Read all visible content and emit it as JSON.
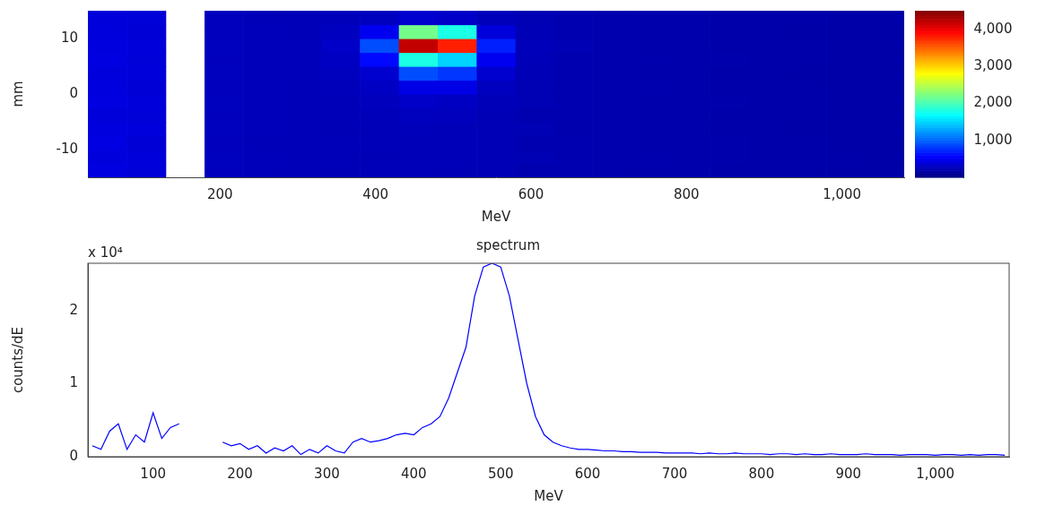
{
  "chart_data": [
    {
      "type": "heatmap",
      "xlabel": "MeV",
      "ylabel": "mm",
      "xlim": [
        30,
        1080
      ],
      "xticks": [
        200,
        400,
        600,
        800,
        1000
      ],
      "ylim": [
        -15,
        15
      ],
      "yticks": [
        -10,
        0,
        10
      ],
      "grid": false,
      "x_edges": [
        30,
        80,
        130,
        180,
        230,
        280,
        330,
        380,
        430,
        480,
        530,
        580,
        630,
        680,
        730,
        780,
        830,
        880,
        930,
        980,
        1030,
        1080
      ],
      "y_edges": [
        -15,
        -12.5,
        -10,
        -7.5,
        -5,
        -2.5,
        0,
        2.5,
        5,
        7.5,
        10,
        12.5,
        15
      ],
      "z": [
        [
          430,
          390,
          null,
          270,
          260,
          250,
          240,
          250,
          250,
          240,
          240,
          220,
          220,
          210,
          200,
          200,
          190,
          190,
          190,
          180,
          180
        ],
        [
          410,
          400,
          null,
          280,
          260,
          250,
          250,
          240,
          250,
          250,
          240,
          230,
          220,
          210,
          210,
          200,
          200,
          190,
          190,
          190,
          180
        ],
        [
          440,
          380,
          null,
          270,
          250,
          250,
          250,
          250,
          250,
          250,
          240,
          220,
          220,
          210,
          200,
          200,
          200,
          190,
          190,
          180,
          180
        ],
        [
          420,
          410,
          null,
          280,
          260,
          250,
          240,
          250,
          260,
          250,
          240,
          230,
          210,
          210,
          200,
          200,
          190,
          190,
          180,
          180,
          180
        ],
        [
          400,
          390,
          null,
          270,
          260,
          250,
          250,
          260,
          280,
          270,
          240,
          220,
          220,
          210,
          200,
          200,
          190,
          190,
          190,
          180,
          180
        ],
        [
          430,
          400,
          null,
          280,
          260,
          250,
          250,
          270,
          320,
          300,
          250,
          230,
          220,
          210,
          200,
          200,
          200,
          190,
          190,
          180,
          180
        ],
        [
          420,
          380,
          null,
          270,
          260,
          250,
          260,
          300,
          450,
          450,
          280,
          230,
          220,
          210,
          210,
          200,
          190,
          190,
          190,
          180,
          180
        ],
        [
          410,
          400,
          null,
          280,
          260,
          260,
          280,
          350,
          900,
          800,
          350,
          240,
          220,
          210,
          200,
          200,
          190,
          190,
          180,
          180,
          180
        ],
        [
          430,
          390,
          null,
          270,
          260,
          260,
          300,
          600,
          1800,
          1500,
          500,
          250,
          220,
          210,
          210,
          200,
          200,
          190,
          190,
          180,
          180
        ],
        [
          420,
          400,
          null,
          280,
          260,
          260,
          320,
          900,
          4200,
          3800,
          700,
          260,
          230,
          210,
          200,
          200,
          190,
          190,
          190,
          180,
          180
        ],
        [
          410,
          380,
          null,
          270,
          260,
          250,
          290,
          500,
          2200,
          1800,
          400,
          240,
          220,
          210,
          200,
          200,
          190,
          190,
          180,
          180,
          180
        ],
        [
          400,
          390,
          null,
          270,
          250,
          250,
          260,
          280,
          350,
          320,
          260,
          230,
          220,
          210,
          200,
          200,
          190,
          190,
          190,
          180,
          180
        ]
      ],
      "colorbar_range": [
        0,
        4500
      ],
      "colorbar_ticks": [
        1000,
        2000,
        3000,
        4000
      ]
    },
    {
      "type": "line",
      "title": "spectrum",
      "xlabel": "MeV",
      "ylabel": "counts/dE",
      "annotation": "x 10⁴",
      "color": "#0000ff",
      "grid": false,
      "xlim": [
        25,
        1085
      ],
      "xticks": [
        100,
        200,
        300,
        400,
        500,
        600,
        700,
        800,
        900,
        1000
      ],
      "ylim": [
        0,
        2.65
      ],
      "yticks": [
        0,
        1,
        2
      ],
      "x": [
        30,
        40,
        50,
        60,
        70,
        80,
        90,
        100,
        110,
        120,
        130,
        140,
        150,
        160,
        170,
        180,
        190,
        200,
        210,
        220,
        230,
        240,
        250,
        260,
        270,
        280,
        290,
        300,
        310,
        320,
        330,
        340,
        350,
        360,
        370,
        380,
        390,
        400,
        410,
        420,
        430,
        440,
        450,
        460,
        470,
        480,
        490,
        500,
        510,
        520,
        530,
        540,
        550,
        560,
        570,
        580,
        590,
        600,
        610,
        620,
        630,
        640,
        650,
        660,
        670,
        680,
        690,
        700,
        710,
        720,
        730,
        740,
        750,
        760,
        770,
        780,
        790,
        800,
        810,
        820,
        830,
        840,
        850,
        860,
        870,
        880,
        890,
        900,
        910,
        920,
        930,
        940,
        950,
        960,
        970,
        980,
        990,
        1000,
        1010,
        1020,
        1030,
        1040,
        1050,
        1060,
        1070,
        1080
      ],
      "values": [
        0.15,
        0.1,
        0.35,
        0.45,
        0.1,
        0.3,
        0.2,
        0.6,
        0.25,
        0.4,
        0.45,
        null,
        null,
        null,
        null,
        0.2,
        0.15,
        0.18,
        0.1,
        0.15,
        0.05,
        0.12,
        0.08,
        0.15,
        0.03,
        0.1,
        0.05,
        0.15,
        0.08,
        0.05,
        0.2,
        0.25,
        0.2,
        0.22,
        0.25,
        0.3,
        0.32,
        0.3,
        0.4,
        0.45,
        0.55,
        0.8,
        1.15,
        1.5,
        2.2,
        2.6,
        2.65,
        2.6,
        2.2,
        1.6,
        1.0,
        0.55,
        0.3,
        0.2,
        0.15,
        0.12,
        0.1,
        0.1,
        0.09,
        0.08,
        0.08,
        0.07,
        0.07,
        0.06,
        0.06,
        0.06,
        0.05,
        0.05,
        0.05,
        0.05,
        0.04,
        0.05,
        0.04,
        0.04,
        0.05,
        0.04,
        0.04,
        0.04,
        0.03,
        0.04,
        0.04,
        0.03,
        0.04,
        0.03,
        0.03,
        0.04,
        0.03,
        0.03,
        0.03,
        0.04,
        0.03,
        0.03,
        0.03,
        0.02,
        0.03,
        0.03,
        0.03,
        0.02,
        0.03,
        0.03,
        0.02,
        0.03,
        0.02,
        0.03,
        0.03,
        0.02
      ]
    }
  ]
}
